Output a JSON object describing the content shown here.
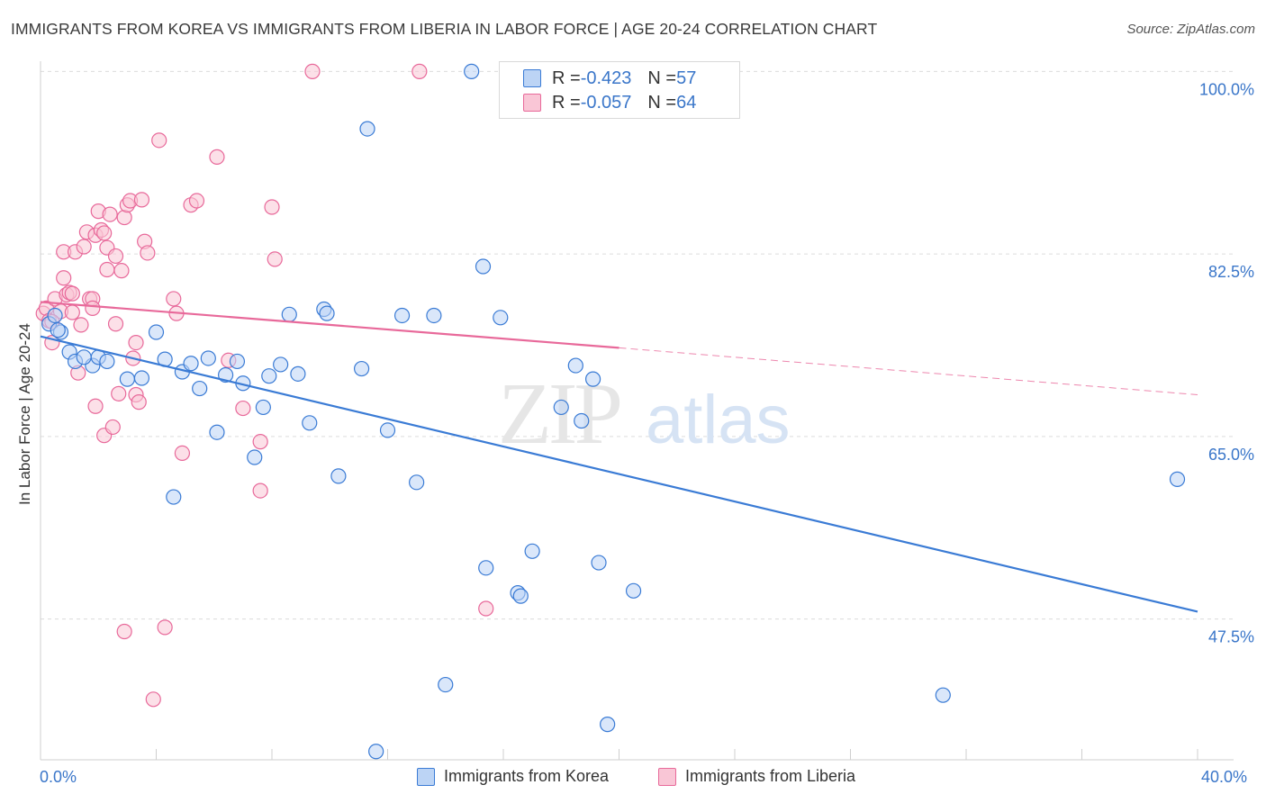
{
  "header": {
    "title": "IMMIGRANTS FROM KOREA VS IMMIGRANTS FROM LIBERIA IN LABOR FORCE | AGE 20-24 CORRELATION CHART",
    "source": "Source: ZipAtlas.com"
  },
  "legend": {
    "rows": [
      {
        "r_label": "R = ",
        "r_value": "-0.423",
        "n_label": "N = ",
        "n_value": "57"
      },
      {
        "r_label": "R = ",
        "r_value": "-0.057",
        "n_label": "N = ",
        "n_value": "64"
      }
    ]
  },
  "watermark": {
    "zip": "ZIP",
    "atlas": "atlas"
  },
  "colors": {
    "korea": "#3a7bd5",
    "liberia": "#e8699a",
    "korea_fill": "#bcd4f5",
    "liberia_fill": "#f9c6d6",
    "tick_label": "#3a76c9"
  },
  "chart_data": {
    "type": "scatter",
    "title": "IMMIGRANTS FROM KOREA VS IMMIGRANTS FROM LIBERIA IN LABOR FORCE | AGE 20-24 CORRELATION CHART",
    "xlabel": "",
    "ylabel": "In Labor Force | Age 20-24",
    "xlim": [
      0,
      40
    ],
    "ylim": [
      34,
      101.5
    ],
    "x_tick_labels": [
      "0.0%",
      "40.0%"
    ],
    "y_ticks": [
      47.5,
      65.0,
      82.5,
      100.0
    ],
    "y_tick_labels": [
      "47.5%",
      "65.0%",
      "82.5%",
      "100.0%"
    ],
    "grid": true,
    "legend_position": "top-center",
    "series": [
      {
        "name": "Immigrants from Korea",
        "color": "#3a7bd5",
        "trend": {
          "x": [
            0,
            40
          ],
          "y": [
            74.6,
            48.2
          ],
          "style": "solid"
        },
        "points": [
          [
            0.3,
            75.8
          ],
          [
            0.5,
            76.6
          ],
          [
            0.7,
            75.0
          ],
          [
            1.0,
            73.1
          ],
          [
            1.2,
            72.2
          ],
          [
            1.8,
            71.8
          ],
          [
            1.5,
            72.6
          ],
          [
            2.0,
            72.6
          ],
          [
            2.3,
            72.2
          ],
          [
            3.0,
            70.5
          ],
          [
            3.5,
            70.6
          ],
          [
            4.0,
            75.0
          ],
          [
            4.3,
            72.4
          ],
          [
            4.6,
            59.2
          ],
          [
            4.9,
            71.2
          ],
          [
            5.2,
            72.0
          ],
          [
            5.5,
            69.6
          ],
          [
            5.8,
            72.5
          ],
          [
            6.1,
            65.4
          ],
          [
            6.4,
            70.9
          ],
          [
            6.8,
            72.2
          ],
          [
            7.0,
            70.1
          ],
          [
            7.4,
            63.0
          ],
          [
            7.7,
            67.8
          ],
          [
            7.9,
            70.8
          ],
          [
            8.3,
            71.9
          ],
          [
            8.6,
            76.7
          ],
          [
            8.9,
            71.0
          ],
          [
            9.3,
            66.3
          ],
          [
            9.8,
            77.2
          ],
          [
            9.9,
            76.8
          ],
          [
            10.3,
            61.2
          ],
          [
            11.1,
            71.5
          ],
          [
            11.3,
            94.5
          ],
          [
            11.6,
            34.8
          ],
          [
            12.0,
            65.6
          ],
          [
            12.5,
            76.6
          ],
          [
            13.0,
            60.6
          ],
          [
            13.6,
            76.6
          ],
          [
            14.0,
            41.2
          ],
          [
            14.9,
            100.0
          ],
          [
            15.3,
            81.3
          ],
          [
            15.4,
            52.4
          ],
          [
            15.9,
            76.4
          ],
          [
            16.5,
            50.0
          ],
          [
            16.6,
            49.7
          ],
          [
            17.0,
            54.0
          ],
          [
            18.0,
            67.8
          ],
          [
            18.5,
            71.8
          ],
          [
            18.7,
            66.5
          ],
          [
            19.1,
            70.5
          ],
          [
            19.3,
            52.9
          ],
          [
            19.6,
            37.4
          ],
          [
            20.5,
            50.2
          ],
          [
            31.2,
            40.2
          ],
          [
            39.3,
            60.9
          ],
          [
            0.6,
            75.2
          ]
        ]
      },
      {
        "name": "Immigrants from Liberia",
        "color": "#e8699a",
        "trend": {
          "x": [
            0,
            20,
            40
          ],
          "y": [
            77.9,
            73.5,
            69.0
          ],
          "style": "solid then dashed after x=20"
        },
        "points": [
          [
            0.1,
            76.8
          ],
          [
            0.2,
            77.3
          ],
          [
            0.3,
            76.1
          ],
          [
            0.4,
            74.0
          ],
          [
            0.5,
            78.2
          ],
          [
            0.7,
            77.0
          ],
          [
            0.8,
            82.7
          ],
          [
            0.8,
            80.2
          ],
          [
            0.9,
            78.6
          ],
          [
            1.0,
            78.8
          ],
          [
            1.1,
            78.7
          ],
          [
            1.1,
            76.9
          ],
          [
            1.2,
            82.7
          ],
          [
            1.3,
            71.1
          ],
          [
            1.4,
            75.7
          ],
          [
            1.5,
            83.2
          ],
          [
            1.6,
            84.6
          ],
          [
            1.7,
            78.2
          ],
          [
            1.8,
            78.2
          ],
          [
            1.8,
            77.3
          ],
          [
            1.9,
            84.3
          ],
          [
            1.9,
            67.9
          ],
          [
            2.0,
            86.6
          ],
          [
            2.1,
            84.8
          ],
          [
            2.2,
            84.5
          ],
          [
            2.2,
            65.1
          ],
          [
            2.3,
            83.1
          ],
          [
            2.3,
            81.0
          ],
          [
            2.4,
            86.3
          ],
          [
            2.5,
            65.9
          ],
          [
            2.6,
            82.3
          ],
          [
            2.6,
            75.8
          ],
          [
            2.7,
            69.1
          ],
          [
            2.8,
            80.9
          ],
          [
            2.9,
            46.3
          ],
          [
            2.9,
            86.0
          ],
          [
            3.0,
            87.2
          ],
          [
            3.1,
            87.6
          ],
          [
            3.2,
            72.5
          ],
          [
            3.3,
            69.0
          ],
          [
            3.3,
            74.0
          ],
          [
            3.4,
            68.3
          ],
          [
            3.5,
            87.7
          ],
          [
            3.6,
            83.7
          ],
          [
            3.7,
            82.6
          ],
          [
            4.1,
            93.4
          ],
          [
            4.3,
            46.7
          ],
          [
            4.6,
            78.2
          ],
          [
            4.7,
            76.8
          ],
          [
            4.9,
            63.4
          ],
          [
            5.2,
            87.2
          ],
          [
            5.4,
            87.6
          ],
          [
            3.9,
            39.8
          ],
          [
            6.1,
            91.8
          ],
          [
            6.5,
            72.3
          ],
          [
            7.0,
            67.7
          ],
          [
            7.6,
            64.5
          ],
          [
            7.6,
            59.8
          ],
          [
            8.0,
            87.0
          ],
          [
            8.1,
            82.0
          ],
          [
            9.4,
            100.0
          ],
          [
            13.1,
            100.0
          ],
          [
            15.4,
            48.5
          ],
          [
            0.4,
            76.0
          ]
        ]
      }
    ]
  },
  "x_axis": {
    "min_label": "0.0%",
    "max_label": "40.0%"
  },
  "bottom_legend": {
    "korea": "Immigrants from Korea",
    "liberia": "Immigrants from Liberia"
  }
}
